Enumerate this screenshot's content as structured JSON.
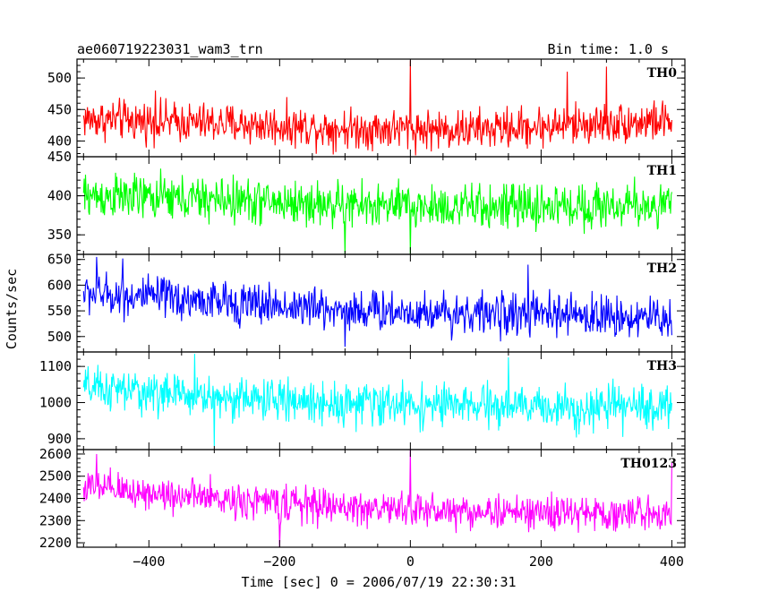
{
  "header": {
    "title": "ae060719223031_wam3_trn",
    "bin_time": "Bin time: 1.0 s"
  },
  "chart_data": {
    "type": "line",
    "title": "ae060719223031_wam3_trn",
    "subtitle": "Bin time: 1.0 s",
    "xlabel": "Time [sec] 0 = 2006/07/19 22:30:31",
    "ylabel": "Counts/sec",
    "xlim": [
      -510,
      420
    ],
    "x_ticks": [
      -400,
      -200,
      0,
      200,
      400
    ],
    "x_start": -500,
    "x_end": 400,
    "x_step": 1,
    "grid": false,
    "panels": [
      {
        "name": "TH0",
        "color": "#ff0000",
        "ylim": [
          375,
          530
        ],
        "y_ticks": [
          400,
          450,
          500
        ],
        "mean_points": [
          [
            -500,
            435
          ],
          [
            -300,
            428
          ],
          [
            -100,
            420
          ],
          [
            100,
            418
          ],
          [
            300,
            428
          ],
          [
            400,
            432
          ]
        ],
        "noise_amplitude": 22,
        "spikes": [
          [
            0,
            528
          ],
          [
            -390,
            480
          ],
          [
            300,
            518
          ],
          [
            240,
            510
          ]
        ]
      },
      {
        "name": "TH1",
        "color": "#00ff00",
        "ylim": [
          325,
          450
        ],
        "y_ticks": [
          350,
          400,
          450
        ],
        "mean_points": [
          [
            -500,
            400
          ],
          [
            -300,
            395
          ],
          [
            -100,
            388
          ],
          [
            100,
            385
          ],
          [
            300,
            387
          ],
          [
            400,
            388
          ]
        ],
        "noise_amplitude": 20,
        "spikes": [
          [
            -100,
            325
          ],
          [
            0,
            325
          ]
        ]
      },
      {
        "name": "TH2",
        "color": "#0000ff",
        "ylim": [
          470,
          660
        ],
        "y_ticks": [
          500,
          550,
          600,
          650
        ],
        "mean_points": [
          [
            -500,
            585
          ],
          [
            -300,
            568
          ],
          [
            -100,
            552
          ],
          [
            100,
            545
          ],
          [
            300,
            540
          ],
          [
            400,
            535
          ]
        ],
        "noise_amplitude": 28,
        "spikes": [
          [
            -480,
            655
          ],
          [
            -440,
            652
          ],
          [
            -100,
            480
          ],
          [
            180,
            640
          ]
        ]
      },
      {
        "name": "TH3",
        "color": "#00ffff",
        "ylim": [
          870,
          1140
        ],
        "y_ticks": [
          900,
          1000,
          1100
        ],
        "mean_points": [
          [
            -500,
            1040
          ],
          [
            -300,
            1015
          ],
          [
            -100,
            998
          ],
          [
            100,
            990
          ],
          [
            300,
            985
          ],
          [
            400,
            990
          ]
        ],
        "noise_amplitude": 40,
        "spikes": [
          [
            -330,
            1135
          ],
          [
            150,
            1125
          ],
          [
            -300,
            880
          ]
        ]
      },
      {
        "name": "TH0123",
        "color": "#ff00ff",
        "ylim": [
          2180,
          2620
        ],
        "y_ticks": [
          2200,
          2300,
          2400,
          2500,
          2600
        ],
        "mean_points": [
          [
            -500,
            2450
          ],
          [
            -300,
            2400
          ],
          [
            -100,
            2360
          ],
          [
            100,
            2340
          ],
          [
            300,
            2330
          ],
          [
            400,
            2335
          ]
        ],
        "noise_amplitude": 55,
        "spikes": [
          [
            0,
            2620
          ],
          [
            -480,
            2600
          ],
          [
            400,
            2560
          ],
          [
            -200,
            2180
          ]
        ]
      }
    ]
  }
}
